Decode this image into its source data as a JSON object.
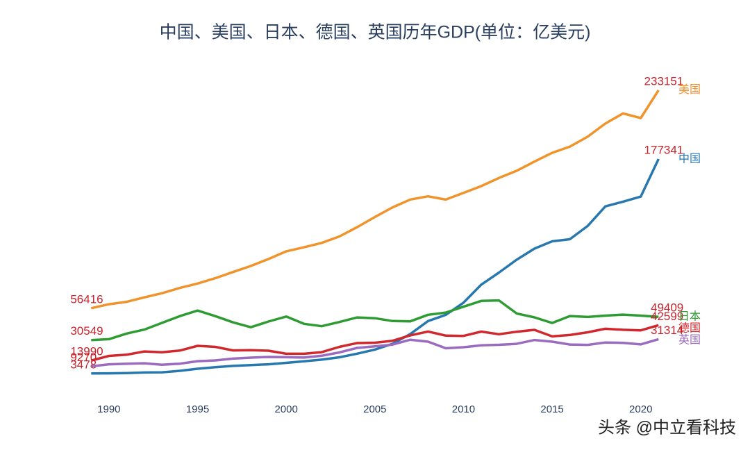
{
  "chart_data": {
    "type": "line",
    "title": "中国、美国、日本、德国、英国历年GDP(单位：亿美元)",
    "watermark": "头条 @中立看科技",
    "x": [
      1989,
      1990,
      1991,
      1992,
      1993,
      1994,
      1995,
      1996,
      1997,
      1998,
      1999,
      2000,
      2001,
      2002,
      2003,
      2004,
      2005,
      2006,
      2007,
      2008,
      2009,
      2010,
      2011,
      2012,
      2013,
      2014,
      2015,
      2016,
      2017,
      2018,
      2019,
      2020,
      2021
    ],
    "xlim": [
      1988,
      2022
    ],
    "xticks": [
      1990,
      1995,
      2000,
      2005,
      2010,
      2015,
      2020
    ],
    "ylim": [
      0,
      250000
    ],
    "grid": false,
    "series": [
      {
        "name": "美国",
        "color": "#f0932b",
        "values": [
          56416,
          59631,
          61580,
          65202,
          68589,
          72872,
          76397,
          80732,
          85779,
          90627,
          96310,
          102510,
          105819,
          109364,
          114580,
          122137,
          130370,
          138150,
          144518,
          147128,
          144489,
          149921,
          155426,
          161970,
          167848,
          175272,
          182383,
          187451,
          195430,
          206118,
          214332,
          210600,
          233151
        ]
      },
      {
        "name": "中国",
        "color": "#2878b0",
        "values": [
          3478,
          3609,
          3834,
          4269,
          4447,
          5644,
          7346,
          8637,
          9615,
          10291,
          10940,
          12113,
          13394,
          14705,
          16603,
          19553,
          22860,
          27521,
          35522,
          45981,
          51010,
          60872,
          75515,
          85322,
          95704,
          104757,
          110616,
          112333,
          123104,
          138948,
          142799,
          146877,
          177341
        ]
      },
      {
        "name": "日本",
        "color": "#2e9b33",
        "values": [
          30549,
          31327,
          35846,
          39088,
          44547,
          49987,
          54491,
          49983,
          44923,
          40982,
          45627,
          49683,
          43741,
          41829,
          45191,
          48931,
          48312,
          46014,
          45794,
          51061,
          52891,
          57591,
          62334,
          62722,
          52125,
          48966,
          44449,
          50037,
          49308,
          50409,
          51179,
          50404,
          49409
        ]
      },
      {
        "name": "德国",
        "color": "#d0282c",
        "values": [
          13990,
          17716,
          18687,
          21314,
          20714,
          22059,
          25916,
          25034,
          22185,
          22438,
          21964,
          19478,
          19454,
          20789,
          25054,
          28149,
          28461,
          30025,
          34399,
          37523,
          34182,
          33967,
          37440,
          35277,
          37333,
          38833,
          33569,
          34676,
          36901,
          39747,
          38890,
          38464,
          42599
        ]
      },
      {
        "name": "英国",
        "color": "#9b6bc0",
        "values": [
          9270,
          10934,
          11427,
          11793,
          10613,
          11404,
          13441,
          14080,
          15517,
          16356,
          16876,
          16653,
          16400,
          17859,
          20545,
          24212,
          25440,
          26926,
          30857,
          29298,
          23938,
          24756,
          26347,
          26764,
          27534,
          30655,
          29281,
          26944,
          26664,
          28604,
          28337,
          27077,
          31314
        ]
      }
    ]
  }
}
